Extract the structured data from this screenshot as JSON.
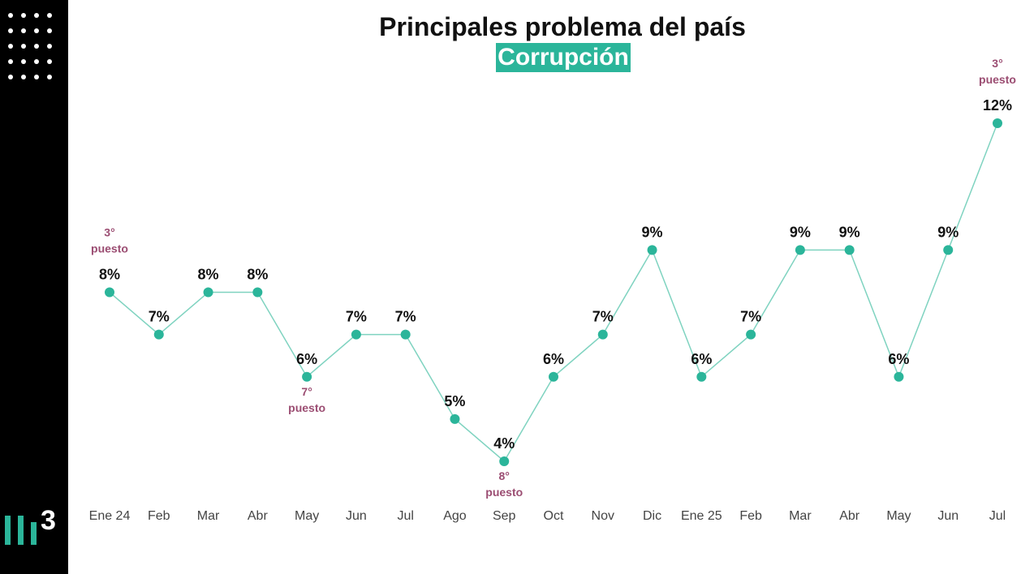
{
  "chart_data": {
    "type": "line",
    "title": "Principales problema del país",
    "subtitle": "Corrupción",
    "categories": [
      "Ene 24",
      "Feb",
      "Mar",
      "Abr",
      "May",
      "Jun",
      "Jul",
      "Ago",
      "Sep",
      "Oct",
      "Nov",
      "Dic",
      "Ene 25",
      "Feb",
      "Mar",
      "Abr",
      "May",
      "Jun",
      "Jul"
    ],
    "values": [
      8,
      7,
      8,
      8,
      6,
      7,
      7,
      5,
      4,
      6,
      7,
      9,
      6,
      7,
      9,
      9,
      6,
      9,
      12
    ],
    "value_labels": [
      "8%",
      "7%",
      "8%",
      "8%",
      "6%",
      "7%",
      "7%",
      "5%",
      "4%",
      "6%",
      "7%",
      "9%",
      "6%",
      "7%",
      "9%",
      "9%",
      "6%",
      "9%",
      "12%"
    ],
    "ylim": [
      4,
      12
    ],
    "grid": false,
    "line_color": "#7fd3c0",
    "marker_color": "#2bb59a",
    "annotations": [
      {
        "index": 0,
        "position": "above",
        "line1": "3°",
        "line2": "puesto"
      },
      {
        "index": 4,
        "position": "below",
        "line1": "7°",
        "line2": "puesto"
      },
      {
        "index": 8,
        "position": "below",
        "line1": "8°",
        "line2": "puesto"
      },
      {
        "index": 18,
        "position": "above",
        "line1": "3°",
        "line2": "puesto"
      }
    ]
  },
  "logo": {
    "digit": "3"
  },
  "colors": {
    "accent": "#2bb59a",
    "rank": "#9b4d72",
    "sidebar": "#000000"
  }
}
